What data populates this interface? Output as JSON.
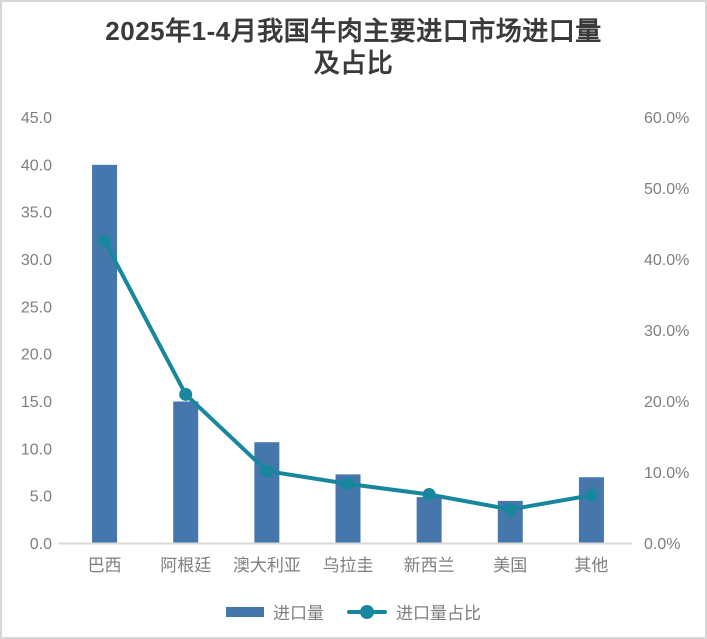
{
  "header": {
    "title_lines": [
      "2025年1-4月我国牛肉主要进口市场进口量",
      "及占比"
    ],
    "title_full": "2025年1-4月我国牛肉主要进口市场进口量及占比"
  },
  "legend": {
    "bar_label": "进口量",
    "line_label": "进口量占比"
  },
  "colors": {
    "bar": "#4577ad",
    "line": "#18879d",
    "axis_text": "#7f7f7f",
    "baseline": "#d9d9d9",
    "title_text": "#3a3a3a",
    "panel_border": "#d7d7d7"
  },
  "chart_data": {
    "type": "bar",
    "subtype": "combo-bar-line-dual-axis",
    "title": "2025年1-4月我国牛肉主要进口市场进口量及占比",
    "categories": [
      "巴西",
      "阿根廷",
      "澳大利亚",
      "乌拉圭",
      "新西兰",
      "美国",
      "其他"
    ],
    "series": [
      {
        "name": "进口量",
        "type": "bar",
        "axis": "left",
        "values": [
          40.0,
          15.0,
          10.7,
          7.3,
          4.9,
          4.5,
          7.0
        ]
      },
      {
        "name": "进口量占比",
        "type": "line",
        "axis": "right",
        "values": [
          42.6,
          21.0,
          10.2,
          8.4,
          6.9,
          4.8,
          6.8
        ],
        "unit": "%"
      }
    ],
    "left_axis": {
      "min": 0,
      "max": 45,
      "tick_step": 5,
      "tick_labels": [
        "0.0",
        "5.0",
        "10.0",
        "15.0",
        "20.0",
        "25.0",
        "30.0",
        "35.0",
        "40.0",
        "45.0"
      ]
    },
    "right_axis": {
      "min": 0,
      "max": 60,
      "tick_step": 10,
      "tick_labels": [
        "0.0%",
        "10.0%",
        "20.0%",
        "30.0%",
        "40.0%",
        "50.0%",
        "60.0%"
      ]
    },
    "grid": false,
    "legend_position": "bottom"
  }
}
